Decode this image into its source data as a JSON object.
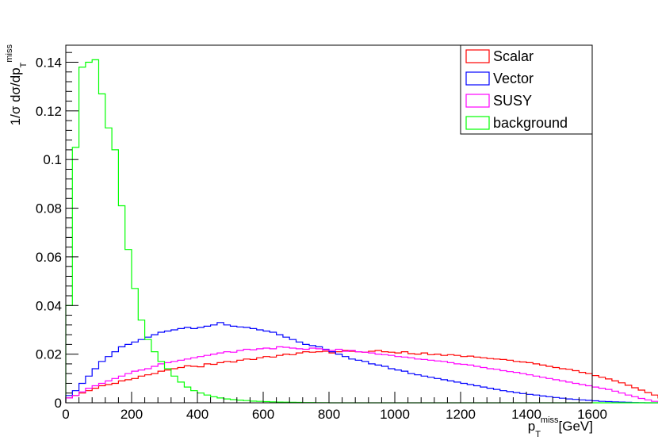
{
  "chart_data": {
    "type": "line",
    "style": "step histogram",
    "xlim": [
      0,
      1600
    ],
    "ylim": [
      0,
      0.147
    ],
    "bin_width": 20,
    "xlabel": {
      "main": "p",
      "sub": "T",
      "sup": "miss",
      "suffix": "[GeV]"
    },
    "ylabel": {
      "prefix": "1/σ dσ/dp",
      "sub": "T",
      "sup": "miss"
    },
    "xticks": [
      0,
      200,
      400,
      600,
      800,
      1000,
      1200,
      1400,
      1600
    ],
    "yticks": [
      0,
      0.02,
      0.04,
      0.06,
      0.08,
      0.1,
      0.12,
      0.14
    ],
    "ytick_labels": [
      "0",
      "0.02",
      "0.04",
      "0.06",
      "0.08",
      "0.1",
      "0.12",
      "0.14"
    ],
    "legend_position": "top-right",
    "grid": false,
    "series": [
      {
        "name": "Scalar",
        "color": "#ff0000",
        "values": [
          0.002,
          0.003,
          0.004,
          0.005,
          0.006,
          0.007,
          0.0075,
          0.008,
          0.009,
          0.0095,
          0.01,
          0.011,
          0.0115,
          0.012,
          0.013,
          0.0135,
          0.014,
          0.0145,
          0.0152,
          0.015,
          0.0148,
          0.016,
          0.0158,
          0.0165,
          0.017,
          0.0168,
          0.0175,
          0.018,
          0.0178,
          0.0185,
          0.019,
          0.0188,
          0.0195,
          0.02,
          0.0198,
          0.0205,
          0.021,
          0.0208,
          0.021,
          0.0212,
          0.0205,
          0.021,
          0.0215,
          0.0212,
          0.021,
          0.0208,
          0.0212,
          0.0215,
          0.021,
          0.0208,
          0.0205,
          0.021,
          0.0202,
          0.02,
          0.0205,
          0.0198,
          0.02,
          0.0195,
          0.0198,
          0.0195,
          0.019,
          0.0192,
          0.0188,
          0.0185,
          0.0182,
          0.018,
          0.0178,
          0.0175,
          0.017,
          0.0168,
          0.0165,
          0.016,
          0.0155,
          0.015,
          0.0145,
          0.014,
          0.0138,
          0.0132,
          0.0125,
          0.012,
          0.0112,
          0.0105,
          0.0098,
          0.009,
          0.0082,
          0.0072,
          0.0062,
          0.0052,
          0.0042,
          0.0032,
          0.002,
          0.001,
          0.0002,
          0,
          0,
          0,
          0,
          0,
          0,
          0,
          0,
          0,
          0,
          0,
          0,
          0,
          0,
          0,
          0,
          0,
          0,
          0,
          0,
          0,
          0,
          0,
          0,
          0,
          0,
          0,
          0,
          0,
          0,
          0
        ]
      },
      {
        "name": "Vector",
        "color": "#0000ff",
        "values": [
          0.003,
          0.005,
          0.008,
          0.011,
          0.014,
          0.017,
          0.019,
          0.021,
          0.023,
          0.024,
          0.025,
          0.026,
          0.027,
          0.028,
          0.029,
          0.0295,
          0.03,
          0.0305,
          0.031,
          0.0305,
          0.031,
          0.0315,
          0.032,
          0.033,
          0.032,
          0.0315,
          0.0312,
          0.031,
          0.0305,
          0.03,
          0.0295,
          0.029,
          0.028,
          0.027,
          0.026,
          0.025,
          0.024,
          0.0235,
          0.023,
          0.022,
          0.021,
          0.02,
          0.019,
          0.018,
          0.0175,
          0.017,
          0.016,
          0.0155,
          0.015,
          0.014,
          0.0135,
          0.013,
          0.012,
          0.0115,
          0.011,
          0.0105,
          0.01,
          0.0095,
          0.009,
          0.0085,
          0.008,
          0.0075,
          0.007,
          0.0065,
          0.006,
          0.0055,
          0.005,
          0.0046,
          0.0042,
          0.0038,
          0.0035,
          0.0032,
          0.0028,
          0.0025,
          0.0022,
          0.0019,
          0.0016,
          0.0014,
          0.0012,
          0.001,
          0.0008,
          0.0006,
          0.0005,
          0.0004,
          0.0003,
          0.0002,
          0.0001,
          5e-05,
          0,
          0,
          0,
          0,
          0,
          0,
          0,
          0,
          0,
          0,
          0,
          0,
          0,
          0,
          0,
          0,
          0,
          0,
          0,
          0,
          0,
          0,
          0,
          0,
          0,
          0,
          0,
          0,
          0,
          0,
          0,
          0,
          0,
          0,
          0,
          0
        ]
      },
      {
        "name": "SUSY",
        "color": "#ff00ff",
        "values": [
          0.002,
          0.003,
          0.0045,
          0.006,
          0.007,
          0.008,
          0.009,
          0.01,
          0.011,
          0.012,
          0.013,
          0.0135,
          0.014,
          0.015,
          0.016,
          0.0165,
          0.017,
          0.0175,
          0.018,
          0.0185,
          0.019,
          0.0195,
          0.02,
          0.0205,
          0.021,
          0.0208,
          0.0215,
          0.022,
          0.0218,
          0.0222,
          0.0225,
          0.0222,
          0.023,
          0.0228,
          0.0225,
          0.0222,
          0.022,
          0.0225,
          0.0222,
          0.0218,
          0.0215,
          0.022,
          0.0212,
          0.0215,
          0.021,
          0.0208,
          0.0205,
          0.02,
          0.0198,
          0.0195,
          0.019,
          0.0188,
          0.0185,
          0.018,
          0.0178,
          0.0175,
          0.0172,
          0.017,
          0.0165,
          0.016,
          0.0158,
          0.0155,
          0.015,
          0.0145,
          0.014,
          0.0138,
          0.0132,
          0.0128,
          0.0125,
          0.012,
          0.0115,
          0.011,
          0.0105,
          0.01,
          0.0095,
          0.009,
          0.0085,
          0.008,
          0.0075,
          0.007,
          0.0065,
          0.006,
          0.0055,
          0.0048,
          0.004,
          0.0032,
          0.0025,
          0.0018,
          0.0012,
          0.0006,
          0.0002,
          0,
          0,
          0,
          0,
          0,
          0,
          0,
          0,
          0,
          0,
          0,
          0,
          0,
          0,
          0,
          0,
          0,
          0,
          0,
          0,
          0,
          0,
          0,
          0,
          0,
          0,
          0,
          0,
          0,
          0,
          0,
          0,
          0,
          0
        ]
      },
      {
        "name": "background",
        "color": "#00ff00",
        "values": [
          0.04,
          0.105,
          0.138,
          0.14,
          0.141,
          0.127,
          0.113,
          0.104,
          0.081,
          0.063,
          0.047,
          0.034,
          0.026,
          0.021,
          0.017,
          0.014,
          0.011,
          0.0085,
          0.0065,
          0.005,
          0.004,
          0.0032,
          0.0025,
          0.002,
          0.0016,
          0.0013,
          0.0011,
          0.0009,
          0.0007,
          0.0006,
          0.0005,
          0.0004,
          0.0003,
          0.00025,
          0.0002,
          0.00015,
          0.0001,
          0.0001,
          5e-05,
          5e-05,
          0,
          0,
          0,
          0,
          0,
          0,
          0,
          0,
          0,
          0,
          0,
          0,
          0,
          0,
          0,
          0,
          0,
          0,
          0,
          0,
          0,
          0,
          0,
          0,
          0,
          0,
          0,
          0,
          0,
          0,
          0,
          0,
          0,
          0,
          0,
          0,
          0,
          0,
          0,
          0,
          0,
          0,
          0,
          0,
          0,
          0,
          0,
          0,
          0,
          0,
          0,
          0,
          0,
          0,
          0,
          0,
          0,
          0,
          0,
          0,
          0,
          0,
          0,
          0,
          0,
          0,
          0,
          0,
          0,
          0,
          0,
          0,
          0,
          0,
          0,
          0,
          0
        ]
      }
    ]
  }
}
